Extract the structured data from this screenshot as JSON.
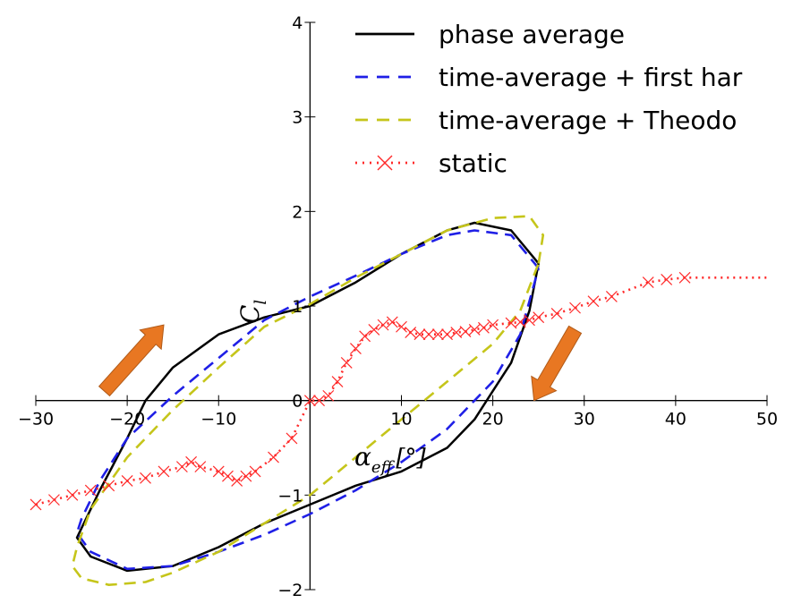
{
  "chart_data": {
    "type": "line",
    "xlabel": "α_eff [°]",
    "xlabel_parts": {
      "symbol": "α",
      "subscript": "eff",
      "unit": "[°]"
    },
    "ylabel": "C_l",
    "ylabel_parts": {
      "symbol": "C",
      "subscript": "l"
    },
    "xlim": [
      -30,
      50
    ],
    "ylim": [
      -2,
      4
    ],
    "xticks": [
      -30,
      -20,
      -10,
      0,
      10,
      20,
      30,
      40,
      50
    ],
    "yticks": [
      -2,
      -1,
      0,
      1,
      2,
      3,
      4
    ],
    "xtick_labels": [
      "−30",
      "−20",
      "−10",
      "0",
      "10",
      "20",
      "30",
      "40",
      "50"
    ],
    "ytick_labels": [
      "−2",
      "−1",
      "0",
      "1",
      "2",
      "3",
      "4"
    ],
    "grid": false,
    "legend_position": "top-right",
    "series": [
      {
        "name": "phase average",
        "color": "#000000",
        "style": "solid",
        "x": [
          25,
          22,
          18,
          15,
          10,
          5,
          0,
          -5,
          -10,
          -15,
          -18,
          -20,
          -23,
          -25,
          -25.5,
          -24,
          -20,
          -15,
          -10,
          -5,
          0,
          5,
          10,
          15,
          18,
          20,
          22,
          24,
          25
        ],
        "y": [
          1.45,
          1.8,
          1.88,
          1.8,
          1.55,
          1.25,
          1.0,
          0.88,
          0.7,
          0.35,
          0.0,
          -0.4,
          -0.95,
          -1.35,
          -1.45,
          -1.65,
          -1.8,
          -1.75,
          -1.55,
          -1.3,
          -1.1,
          -0.9,
          -0.75,
          -0.5,
          -0.2,
          0.1,
          0.4,
          0.95,
          1.45
        ]
      },
      {
        "name": "time-average + first har",
        "color": "#1f1fe6",
        "style": "dashed",
        "x": [
          25,
          22,
          18,
          15,
          10,
          5,
          0,
          -5,
          -10,
          -15,
          -20,
          -23,
          -25,
          -25.5,
          -24,
          -20,
          -15,
          -10,
          -5,
          0,
          5,
          10,
          15,
          20,
          23,
          25
        ],
        "y": [
          1.4,
          1.75,
          1.8,
          1.75,
          1.55,
          1.32,
          1.1,
          0.85,
          0.45,
          0.05,
          -0.4,
          -0.85,
          -1.25,
          -1.4,
          -1.6,
          -1.78,
          -1.75,
          -1.6,
          -1.42,
          -1.2,
          -0.95,
          -0.65,
          -0.3,
          0.2,
          0.7,
          1.4
        ]
      },
      {
        "name": "time-average + Theodo",
        "color": "#c5c51a",
        "style": "dashed",
        "x": [
          25,
          25.5,
          24,
          20,
          15,
          10,
          5,
          0,
          -5,
          -10,
          -15,
          -20,
          -24,
          -25.5,
          -26,
          -25,
          -22,
          -18,
          -15,
          -10,
          -5,
          0,
          5,
          10,
          15,
          20,
          23,
          25
        ],
        "y": [
          1.45,
          1.75,
          1.95,
          1.93,
          1.8,
          1.55,
          1.3,
          1.02,
          0.78,
          0.35,
          -0.1,
          -0.6,
          -1.15,
          -1.55,
          -1.75,
          -1.88,
          -1.95,
          -1.92,
          -1.82,
          -1.6,
          -1.3,
          -1.0,
          -0.6,
          -0.2,
          0.2,
          0.6,
          0.95,
          1.45
        ]
      },
      {
        "name": "static",
        "color": "#ff2a2a",
        "style": "dash-dot",
        "marker": "x",
        "x": [
          -30,
          -28,
          -26,
          -24,
          -22,
          -20,
          -18,
          -16,
          -14,
          -13,
          -12,
          -10,
          -9,
          -8,
          -7,
          -6,
          -4,
          -2,
          0,
          1,
          2,
          3,
          4,
          5,
          6,
          7,
          8,
          9,
          10,
          11,
          12,
          13,
          14,
          15,
          16,
          17,
          18,
          19,
          20,
          22,
          23,
          24,
          25,
          27,
          29,
          31,
          33,
          37,
          39,
          41,
          43,
          50
        ],
        "y": [
          -1.1,
          -1.05,
          -1.0,
          -0.95,
          -0.9,
          -0.85,
          -0.82,
          -0.75,
          -0.7,
          -0.65,
          -0.7,
          -0.75,
          -0.8,
          -0.85,
          -0.8,
          -0.75,
          -0.6,
          -0.4,
          0.0,
          0.0,
          0.05,
          0.2,
          0.4,
          0.55,
          0.68,
          0.75,
          0.8,
          0.83,
          0.78,
          0.72,
          0.7,
          0.7,
          0.7,
          0.7,
          0.72,
          0.73,
          0.75,
          0.77,
          0.8,
          0.82,
          0.83,
          0.85,
          0.88,
          0.92,
          0.98,
          1.05,
          1.1,
          1.25,
          1.28,
          1.3,
          1.3,
          1.3
        ]
      }
    ],
    "annotations": [
      {
        "type": "arrow",
        "direction": "up-right",
        "color": "#e87722",
        "from": [
          -22.5,
          0.1
        ],
        "to": [
          -16,
          0.8
        ]
      },
      {
        "type": "arrow",
        "direction": "down-left",
        "color": "#e87722",
        "from": [
          29,
          0.75
        ],
        "to": [
          24.5,
          0
        ]
      }
    ]
  }
}
